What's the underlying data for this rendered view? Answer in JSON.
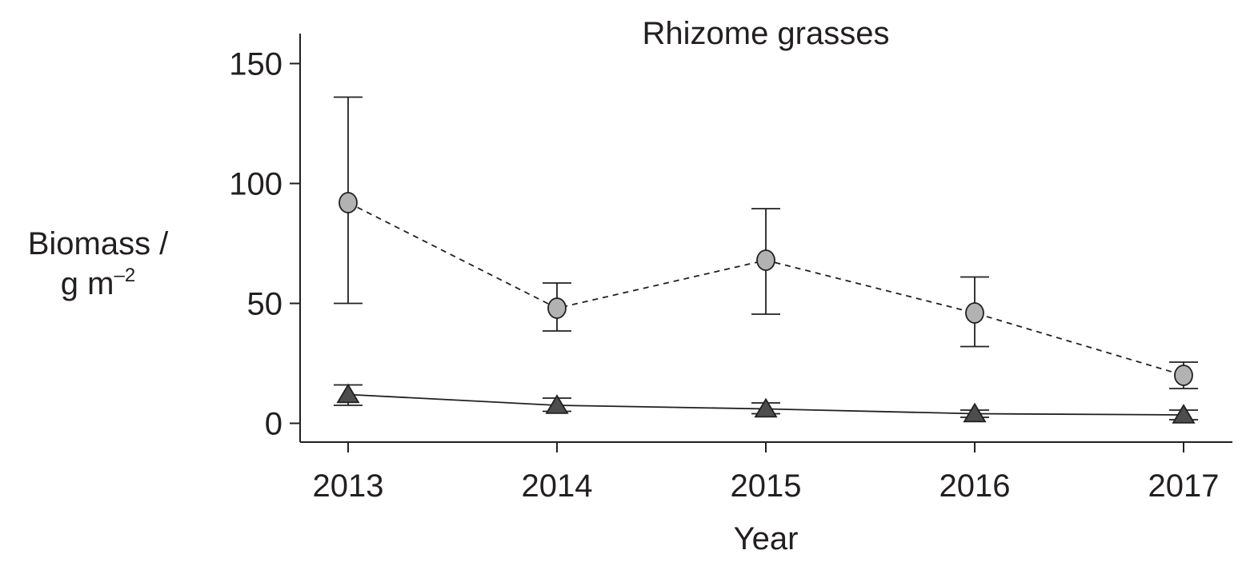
{
  "chart_data": {
    "type": "line",
    "title": "Rhizome grasses",
    "xlabel": "Year",
    "ylabel": {
      "line1": "Biomass /",
      "line2": "g m",
      "exponent": "–2"
    },
    "x": [
      "2013",
      "2014",
      "2015",
      "2016",
      "2017"
    ],
    "ylim": [
      -8,
      162
    ],
    "yticks": [
      "0",
      "50",
      "100",
      "150"
    ],
    "grid": false,
    "legend": "none",
    "series": [
      {
        "marker": "circle",
        "line_style": "dashed",
        "marker_color": "#b2b2b2",
        "values": [
          92,
          48,
          68,
          46,
          20
        ],
        "error_low": [
          50,
          38.5,
          45.5,
          32,
          14.5
        ],
        "error_high": [
          136,
          58.5,
          89.5,
          61,
          25.5
        ]
      },
      {
        "marker": "triangle",
        "line_style": "solid",
        "marker_color": "#4d4d4d",
        "values": [
          12,
          7.5,
          6,
          4,
          3.5
        ],
        "error_low": [
          7.5,
          5,
          4,
          2.5,
          1.5
        ],
        "error_high": [
          16,
          10.5,
          8.5,
          5.5,
          5.5
        ]
      }
    ]
  }
}
